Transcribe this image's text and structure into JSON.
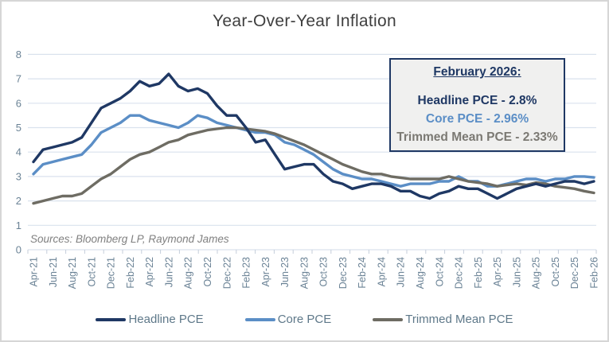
{
  "window": {
    "background": "#FFFFFF",
    "border_color": "#D6D6D6"
  },
  "chart_data": {
    "type": "line",
    "title": "Year-Over-Year Inflation",
    "xlabel": "",
    "ylabel": "",
    "ylim": [
      0,
      8
    ],
    "y_ticks": [
      0,
      1,
      2,
      3,
      4,
      5,
      6,
      7,
      8
    ],
    "grid": "horizontal",
    "legend_position": "bottom",
    "x_label_every": 2,
    "x": [
      "Apr-21",
      "May-21",
      "Jun-21",
      "Jul-21",
      "Aug-21",
      "Sep-21",
      "Oct-21",
      "Nov-21",
      "Dec-21",
      "Jan-22",
      "Feb-22",
      "Mar-22",
      "Apr-22",
      "May-22",
      "Jun-22",
      "Jul-22",
      "Aug-22",
      "Sep-22",
      "Oct-22",
      "Nov-22",
      "Dec-22",
      "Jan-23",
      "Feb-23",
      "Mar-23",
      "Apr-23",
      "May-23",
      "Jun-23",
      "Jul-23",
      "Aug-23",
      "Sep-23",
      "Oct-23",
      "Nov-23",
      "Dec-23",
      "Jan-24",
      "Feb-24",
      "Mar-24",
      "Apr-24",
      "May-24",
      "Jun-24",
      "Jul-24",
      "Aug-24",
      "Sep-24",
      "Oct-24",
      "Nov-24",
      "Dec-24",
      "Jan-25",
      "Feb-25",
      "Mar-25",
      "Apr-25",
      "May-25",
      "Jun-25",
      "Jul-25",
      "Aug-25",
      "Sep-25",
      "Oct-25",
      "Nov-25",
      "Dec-25",
      "Jan-26",
      "Feb-26"
    ],
    "series": [
      {
        "name": "Headline PCE",
        "color": "#1F3864",
        "values": [
          3.6,
          4.1,
          4.2,
          4.3,
          4.4,
          4.6,
          5.2,
          5.8,
          6.0,
          6.2,
          6.5,
          6.9,
          6.7,
          6.8,
          7.2,
          6.7,
          6.5,
          6.6,
          6.4,
          5.9,
          5.5,
          5.5,
          5.0,
          4.4,
          4.5,
          3.9,
          3.3,
          3.4,
          3.5,
          3.5,
          3.1,
          2.8,
          2.7,
          2.5,
          2.6,
          2.7,
          2.7,
          2.6,
          2.4,
          2.4,
          2.2,
          2.1,
          2.3,
          2.4,
          2.6,
          2.5,
          2.5,
          2.3,
          2.1,
          2.3,
          2.5,
          2.6,
          2.7,
          2.6,
          2.7,
          2.8,
          2.8,
          2.7,
          2.8
        ]
      },
      {
        "name": "Core PCE",
        "color": "#5B8EC6",
        "values": [
          3.1,
          3.5,
          3.6,
          3.7,
          3.8,
          3.9,
          4.3,
          4.8,
          5.0,
          5.2,
          5.5,
          5.5,
          5.3,
          5.2,
          5.1,
          5.0,
          5.2,
          5.5,
          5.4,
          5.2,
          5.1,
          5.0,
          4.9,
          4.8,
          4.8,
          4.7,
          4.4,
          4.3,
          4.1,
          3.9,
          3.6,
          3.3,
          3.1,
          3.0,
          2.9,
          2.9,
          2.8,
          2.7,
          2.6,
          2.7,
          2.7,
          2.7,
          2.8,
          2.8,
          3.0,
          2.8,
          2.8,
          2.6,
          2.6,
          2.7,
          2.8,
          2.9,
          2.9,
          2.8,
          2.9,
          2.9,
          3.0,
          3.0,
          2.96
        ]
      },
      {
        "name": "Trimmed Mean PCE",
        "color": "#6E6C63",
        "values": [
          1.9,
          2.0,
          2.1,
          2.2,
          2.2,
          2.3,
          2.6,
          2.9,
          3.1,
          3.4,
          3.7,
          3.9,
          4.0,
          4.2,
          4.4,
          4.5,
          4.7,
          4.8,
          4.9,
          4.95,
          5.0,
          5.0,
          4.95,
          4.9,
          4.85,
          4.75,
          4.6,
          4.45,
          4.3,
          4.1,
          3.9,
          3.7,
          3.5,
          3.35,
          3.2,
          3.1,
          3.1,
          3.0,
          2.95,
          2.9,
          2.9,
          2.9,
          2.9,
          3.0,
          2.9,
          2.8,
          2.75,
          2.7,
          2.6,
          2.65,
          2.7,
          2.65,
          2.75,
          2.7,
          2.6,
          2.55,
          2.5,
          2.4,
          2.33
        ]
      }
    ],
    "source_note": "Sources: Bloomberg LP, Raymond James",
    "axis_label_color": "#6B8396",
    "gridline_color": "#DAE2ED",
    "tick_color": "#C5CEDA"
  },
  "callout": {
    "title": "February 2026:",
    "lines": [
      {
        "text": "Headline PCE - 2.8%",
        "color": "#1F3864"
      },
      {
        "text": "Core PCE - 2.96%",
        "color": "#5B8EC6"
      },
      {
        "text": "Trimmed Mean PCE - 2.33%",
        "color": "#7B7973"
      }
    ]
  },
  "legend": {
    "items": [
      {
        "label": "Headline PCE",
        "color": "#1F3864"
      },
      {
        "label": "Core PCE",
        "color": "#5B8EC6"
      },
      {
        "label": "Trimmed Mean PCE",
        "color": "#6E6C63"
      }
    ]
  }
}
